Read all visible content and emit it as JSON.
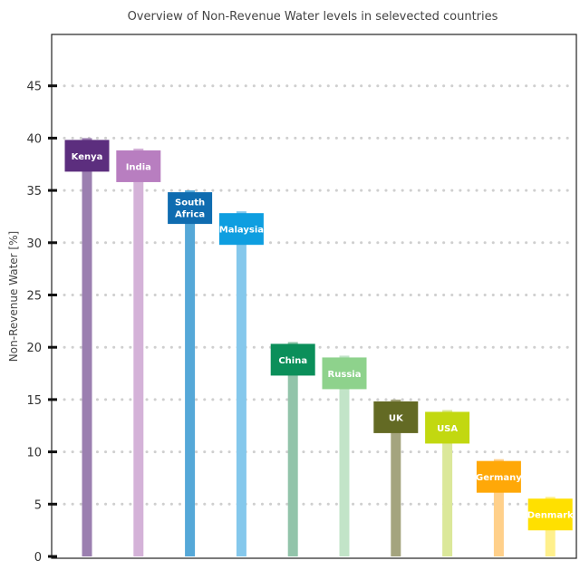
{
  "chart_data": {
    "type": "bar",
    "title": "Overview of Non-Revenue Water levels in selevected countries",
    "ylabel": "Non-Revenue Water [%]",
    "ylim": [
      0,
      50
    ],
    "yticks": [
      0,
      5,
      10,
      15,
      20,
      25,
      30,
      35,
      40,
      45
    ],
    "grid": true,
    "categories": [
      "Kenya",
      "India",
      "South Africa",
      "Malaysia",
      "China",
      "Russia",
      "UK",
      "USA",
      "Germany",
      "Denmark"
    ],
    "values": [
      40,
      39,
      35,
      33,
      20.5,
      19.2,
      15,
      14,
      9.3,
      5.7
    ],
    "colors": {
      "bar": [
        "#9b7fb0",
        "#d4b2d8",
        "#55a8d8",
        "#85c8ec",
        "#92c4aa",
        "#c2e4c8",
        "#a4a47e",
        "#dbe89a",
        "#ffd08a",
        "#fff08c"
      ],
      "label": [
        "#5c2e7e",
        "#b87ec0",
        "#0f6cb0",
        "#0e9ee0",
        "#0b8f5a",
        "#8ed28c",
        "#636a24",
        "#c2d810",
        "#ffa808",
        "#ffe000"
      ]
    }
  }
}
